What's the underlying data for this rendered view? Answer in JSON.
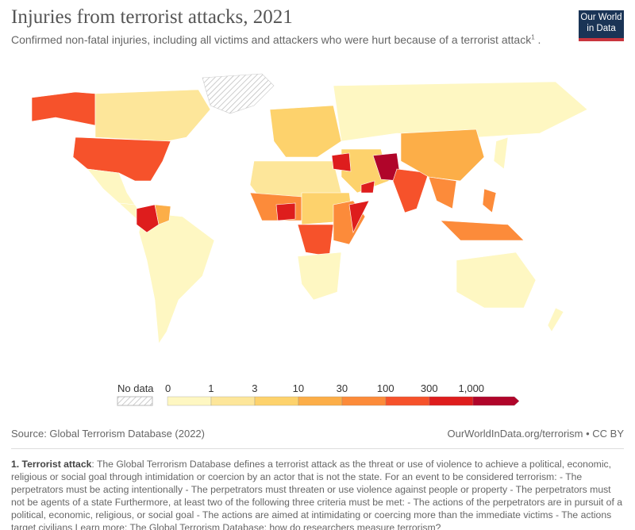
{
  "header": {
    "title": "Injuries from terrorist attacks, 2021",
    "subtitle": "Confirmed non-fatal injuries, including all victims and attackers who were hurt because of a terrorist attack",
    "footnote_ref": "1",
    "subtitle_end": " .",
    "logo_line1": "Our World",
    "logo_line2": "in Data"
  },
  "legend": {
    "no_data_label": "No data",
    "ticks": [
      "0",
      "1",
      "3",
      "10",
      "30",
      "100",
      "300",
      "1,000"
    ],
    "colors": [
      "#fef7c2",
      "#fde69a",
      "#fdd26c",
      "#fcae48",
      "#fc8b3a",
      "#f6522b",
      "#de1d1d",
      "#b0052a"
    ]
  },
  "footer": {
    "source": "Source: Global Terrorism Database (2022)",
    "url": "OurWorldInData.org/terrorism • CC BY"
  },
  "note": {
    "label": "1. Terrorist attack",
    "text": ": The Global Terrorism Database defines a terrorist attack as the threat or use of violence to achieve a political, economic, religious or social goal through intimidation or coercion by an actor that is not the state. For an event to be considered terrorism: - The perpetrators must be acting intentionally - The perpetrators must threaten or use violence against people or property - The perpetrators must not be agents of a state Furthermore, at least two of the following three criteria must be met: - The actions of the perpetrators are in pursuit of a political, economic, religious, or social goal - The actions are aimed at intimidating or coercing more than the immediate victims - The actions target civilians Learn more: The Global Terrorism Database: how do researchers measure terrorism?"
  }
}
